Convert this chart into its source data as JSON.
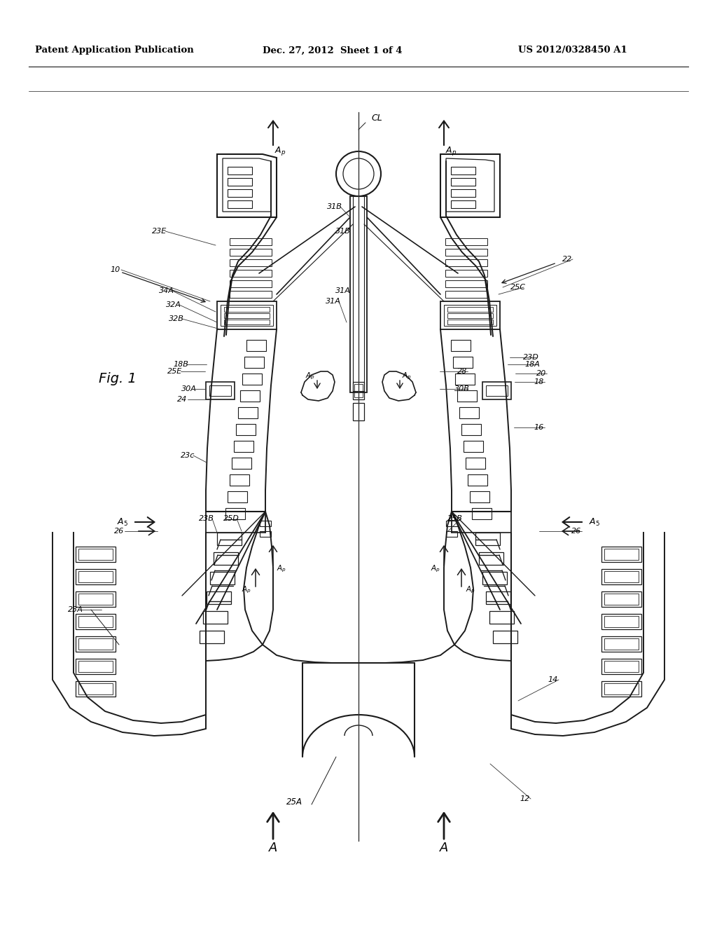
{
  "bg": "#ffffff",
  "header_left": "Patent Application Publication",
  "header_mid": "Dec. 27, 2012  Sheet 1 of 4",
  "header_right": "US 2012/0328450 A1",
  "fig_label": "Fig. 1",
  "lc": "#1a1a1a",
  "lw": 1.4
}
